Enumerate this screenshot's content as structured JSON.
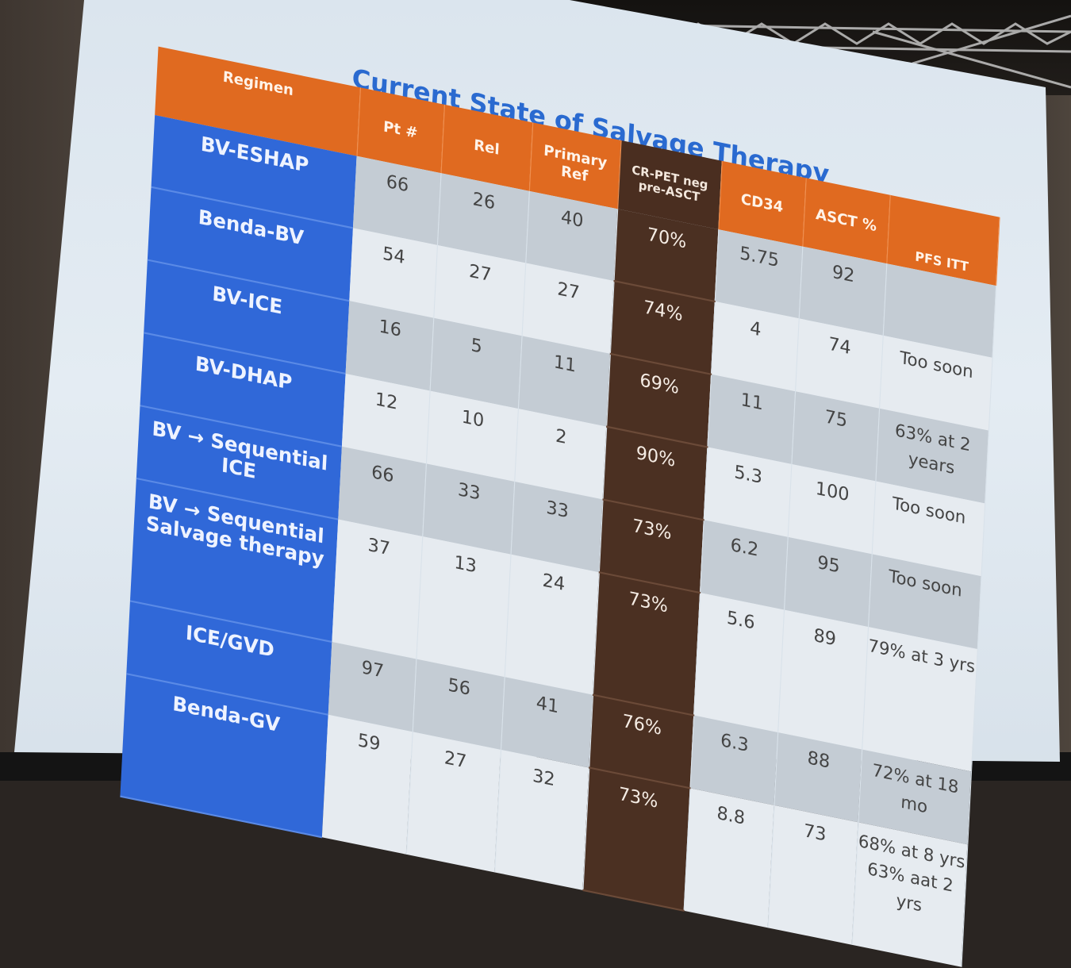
{
  "title": "Current State of Salvage Therapy",
  "columns": [
    "Regimen",
    "Pt #",
    "Rel",
    "Primary Ref",
    "CR-PET neg pre-ASCT",
    "CD34",
    "ASCT %",
    "PFS ITT"
  ],
  "rows": [
    {
      "regimen": "BV-ESHAP",
      "pt": "66",
      "rel": "26",
      "primary_ref": "40",
      "cr_pet": "70%",
      "cd34": "5.75",
      "asct": "92",
      "pfs": ""
    },
    {
      "regimen": "Benda-BV",
      "pt": "54",
      "rel": "27",
      "primary_ref": "27",
      "cr_pet": "74%",
      "cd34": "4",
      "asct": "74",
      "pfs": "Too soon"
    },
    {
      "regimen": "BV-ICE",
      "pt": "16",
      "rel": "5",
      "primary_ref": "11",
      "cr_pet": "69%",
      "cd34": "11",
      "asct": "75",
      "pfs": "63% at 2 years"
    },
    {
      "regimen": "BV-DHAP",
      "pt": "12",
      "rel": "10",
      "primary_ref": "2",
      "cr_pet": "90%",
      "cd34": "5.3",
      "asct": "100",
      "pfs": "Too soon"
    },
    {
      "regimen": "BV → Sequential ICE",
      "pt": "66",
      "rel": "33",
      "primary_ref": "33",
      "cr_pet": "73%",
      "cd34": "6.2",
      "asct": "95",
      "pfs": "Too soon"
    },
    {
      "regimen": "BV → Sequential Salvage therapy",
      "pt": "37",
      "rel": "13",
      "primary_ref": "24",
      "cr_pet": "73%",
      "cd34": "5.6",
      "asct": "89",
      "pfs": "79% at 3 yrs"
    },
    {
      "regimen": "ICE/GVD",
      "pt": "97",
      "rel": "56",
      "primary_ref": "41",
      "cr_pet": "76%",
      "cd34": "6.3",
      "asct": "88",
      "pfs": "72% at 18 mo"
    },
    {
      "regimen": "Benda-GV",
      "pt": "59",
      "rel": "27",
      "primary_ref": "32",
      "cr_pet": "73%",
      "cd34": "8.8",
      "asct": "73",
      "pfs": "68% at 8 yrs"
    }
  ],
  "footer_pfs": "63% aat 2 yrs"
}
